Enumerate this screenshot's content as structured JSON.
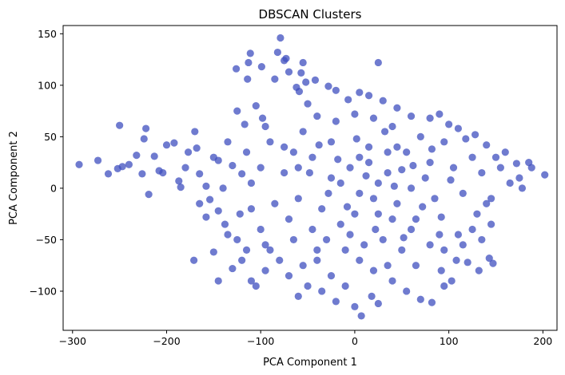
{
  "chart_data": {
    "type": "scatter",
    "title": "DBSCAN Clusters",
    "xlabel": "PCA Component 1",
    "ylabel": "PCA Component 2",
    "xlim": [
      -310,
      215
    ],
    "ylim": [
      -138,
      158
    ],
    "xticks": [
      -300,
      -200,
      -100,
      0,
      100,
      200
    ],
    "yticks": [
      -100,
      -50,
      0,
      50,
      100,
      150
    ],
    "grid": false,
    "color": "#3f4fbf",
    "point_alpha": 0.75,
    "points": [
      [
        -293,
        23
      ],
      [
        -273,
        27
      ],
      [
        -262,
        14
      ],
      [
        -252,
        19
      ],
      [
        -247,
        21
      ],
      [
        -240,
        23
      ],
      [
        -250,
        61
      ],
      [
        -232,
        32
      ],
      [
        -226,
        14
      ],
      [
        -222,
        58
      ],
      [
        -219,
        -6
      ],
      [
        -224,
        48
      ],
      [
        -213,
        31
      ],
      [
        -208,
        17
      ],
      [
        -204,
        15
      ],
      [
        -200,
        42
      ],
      [
        -192,
        44
      ],
      [
        -187,
        7
      ],
      [
        -185,
        1
      ],
      [
        -180,
        20
      ],
      [
        -177,
        35
      ],
      [
        -170,
        55
      ],
      [
        -168,
        39
      ],
      [
        -165,
        14
      ],
      [
        -158,
        2
      ],
      [
        -154,
        -11
      ],
      [
        -150,
        30
      ],
      [
        -145,
        27
      ],
      [
        -140,
        0
      ],
      [
        -135,
        45
      ],
      [
        -130,
        22
      ],
      [
        -120,
        14
      ],
      [
        -115,
        35
      ],
      [
        -110,
        5
      ],
      [
        -171,
        -70
      ],
      [
        -150,
        -62
      ],
      [
        -145,
        -90
      ],
      [
        -130,
        -78
      ],
      [
        -125,
        -50
      ],
      [
        -120,
        -70
      ],
      [
        -110,
        -90
      ],
      [
        -105,
        -95
      ],
      [
        -100,
        -40
      ],
      [
        -95,
        -80
      ],
      [
        -90,
        -60
      ],
      [
        -126,
        116
      ],
      [
        -113,
        122
      ],
      [
        -111,
        131
      ],
      [
        -99,
        118
      ],
      [
        -82,
        132
      ],
      [
        -79,
        146
      ],
      [
        -75,
        124
      ],
      [
        -70,
        113
      ],
      [
        -62,
        98
      ],
      [
        -57,
        112
      ],
      [
        -52,
        103
      ],
      [
        -114,
        106
      ],
      [
        -85,
        106
      ],
      [
        -73,
        126
      ],
      [
        -42,
        105
      ],
      [
        -59,
        94
      ],
      [
        -165,
        -15
      ],
      [
        -158,
        -28
      ],
      [
        -145,
        -22
      ],
      [
        -138,
        -35
      ],
      [
        -122,
        -25
      ],
      [
        -117,
        62
      ],
      [
        -125,
        75
      ],
      [
        -105,
        80
      ],
      [
        -98,
        68
      ],
      [
        -55,
        122
      ],
      [
        -28,
        99
      ],
      [
        -20,
        95
      ],
      [
        -7,
        86
      ],
      [
        5,
        93
      ],
      [
        15,
        90
      ],
      [
        30,
        85
      ],
      [
        45,
        78
      ],
      [
        60,
        70
      ],
      [
        25,
        122
      ],
      [
        -50,
        82
      ],
      [
        -90,
        45
      ],
      [
        -75,
        15
      ],
      [
        -60,
        -10
      ],
      [
        -45,
        30
      ],
      [
        -35,
        -20
      ],
      [
        -25,
        10
      ],
      [
        -15,
        -35
      ],
      [
        -5,
        20
      ],
      [
        5,
        -5
      ],
      [
        15,
        40
      ],
      [
        25,
        -25
      ],
      [
        35,
        15
      ],
      [
        45,
        -15
      ],
      [
        55,
        35
      ],
      [
        65,
        -30
      ],
      [
        75,
        10
      ],
      [
        85,
        -10
      ],
      [
        95,
        45
      ],
      [
        105,
        20
      ],
      [
        115,
        -5
      ],
      [
        125,
        30
      ],
      [
        135,
        15
      ],
      [
        145,
        -10
      ],
      [
        155,
        20
      ],
      [
        165,
        5
      ],
      [
        175,
        10
      ],
      [
        185,
        25
      ],
      [
        202,
        13
      ],
      [
        188,
        20
      ],
      [
        178,
        0
      ],
      [
        172,
        24
      ],
      [
        160,
        35
      ],
      [
        150,
        30
      ],
      [
        140,
        42
      ],
      [
        128,
        52
      ],
      [
        118,
        48
      ],
      [
        110,
        58
      ],
      [
        100,
        62
      ],
      [
        90,
        72
      ],
      [
        80,
        68
      ],
      [
        -30,
        -50
      ],
      [
        -40,
        -70
      ],
      [
        -50,
        -95
      ],
      [
        -60,
        -105
      ],
      [
        -70,
        -85
      ],
      [
        -35,
        -100
      ],
      [
        -20,
        -110
      ],
      [
        -10,
        -95
      ],
      [
        0,
        -115
      ],
      [
        7,
        -124
      ],
      [
        18,
        -105
      ],
      [
        25,
        -112
      ],
      [
        40,
        -90
      ],
      [
        55,
        -100
      ],
      [
        70,
        -108
      ],
      [
        82,
        -111
      ],
      [
        95,
        -95
      ],
      [
        92,
        -80
      ],
      [
        103,
        -90
      ],
      [
        108,
        -70
      ],
      [
        120,
        -72
      ],
      [
        132,
        -80
      ],
      [
        143,
        -68
      ],
      [
        147,
        -73
      ],
      [
        115,
        -55
      ],
      [
        125,
        -40
      ],
      [
        135,
        -50
      ],
      [
        145,
        -35
      ],
      [
        140,
        -15
      ],
      [
        130,
        -25
      ],
      [
        110,
        -45
      ],
      [
        95,
        -60
      ],
      [
        80,
        -55
      ],
      [
        65,
        -75
      ],
      [
        50,
        -60
      ],
      [
        35,
        -75
      ],
      [
        20,
        -80
      ],
      [
        5,
        -70
      ],
      [
        -10,
        -60
      ],
      [
        -25,
        -85
      ],
      [
        -40,
        -60
      ],
      [
        -55,
        -75
      ],
      [
        -65,
        -50
      ],
      [
        -80,
        -70
      ],
      [
        -95,
        -55
      ],
      [
        -115,
        -60
      ],
      [
        -135,
        -45
      ],
      [
        -48,
        15
      ],
      [
        -38,
        42
      ],
      [
        -28,
        -5
      ],
      [
        -18,
        28
      ],
      [
        -8,
        -18
      ],
      [
        2,
        48
      ],
      [
        12,
        12
      ],
      [
        22,
        -40
      ],
      [
        32,
        55
      ],
      [
        42,
        2
      ],
      [
        52,
        -48
      ],
      [
        62,
        22
      ],
      [
        72,
        -18
      ],
      [
        82,
        38
      ],
      [
        92,
        -28
      ],
      [
        102,
        8
      ],
      [
        -65,
        35
      ],
      [
        -55,
        55
      ],
      [
        -85,
        -15
      ],
      [
        -70,
        -30
      ],
      [
        -100,
        20
      ],
      [
        -110,
        -20
      ],
      [
        -95,
        60
      ],
      [
        -40,
        70
      ],
      [
        -20,
        65
      ],
      [
        0,
        72
      ],
      [
        20,
        68
      ],
      [
        40,
        60
      ],
      [
        70,
        50
      ],
      [
        10,
        -55
      ],
      [
        -5,
        -45
      ],
      [
        30,
        -50
      ],
      [
        60,
        -40
      ],
      [
        90,
        -45
      ],
      [
        -25,
        45
      ],
      [
        15,
        25
      ],
      [
        35,
        35
      ],
      [
        50,
        18
      ],
      [
        -15,
        5
      ],
      [
        5,
        30
      ],
      [
        25,
        5
      ],
      [
        45,
        40
      ],
      [
        -60,
        20
      ],
      [
        -75,
        40
      ],
      [
        -45,
        -40
      ],
      [
        0,
        -25
      ],
      [
        20,
        -10
      ],
      [
        40,
        -30
      ],
      [
        60,
        0
      ],
      [
        80,
        25
      ]
    ]
  }
}
